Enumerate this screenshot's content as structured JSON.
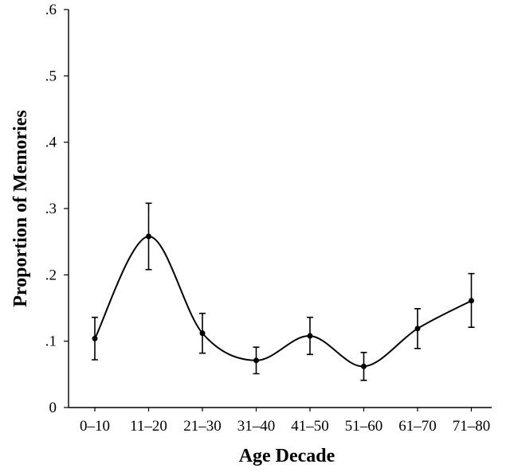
{
  "chart_data": {
    "type": "line",
    "title": "",
    "xlabel": "Age Decade",
    "ylabel": "Proportion of Memories",
    "categories": [
      "0–10",
      "11–20",
      "21–30",
      "31–40",
      "41–50",
      "51–60",
      "61–70",
      "71–80"
    ],
    "yticks": [
      {
        "value": 0,
        "label": "0"
      },
      {
        "value": 0.1,
        "label": ".1"
      },
      {
        "value": 0.2,
        "label": ".2"
      },
      {
        "value": 0.3,
        "label": ".3"
      },
      {
        "value": 0.4,
        "label": ".4"
      },
      {
        "value": 0.5,
        "label": ".5"
      },
      {
        "value": 0.6,
        "label": ".6"
      }
    ],
    "ylim": [
      0,
      0.6
    ],
    "grid": false,
    "legend": "none",
    "series": [
      {
        "values": [
          0.104,
          0.258,
          0.112,
          0.071,
          0.108,
          0.062,
          0.119,
          0.161
        ],
        "error_upper": [
          0.136,
          0.308,
          0.142,
          0.091,
          0.136,
          0.083,
          0.149,
          0.202
        ],
        "error_lower": [
          0.072,
          0.208,
          0.082,
          0.051,
          0.08,
          0.041,
          0.089,
          0.121
        ]
      }
    ],
    "colors": {
      "line": "#000000",
      "axis": "#000000"
    }
  }
}
